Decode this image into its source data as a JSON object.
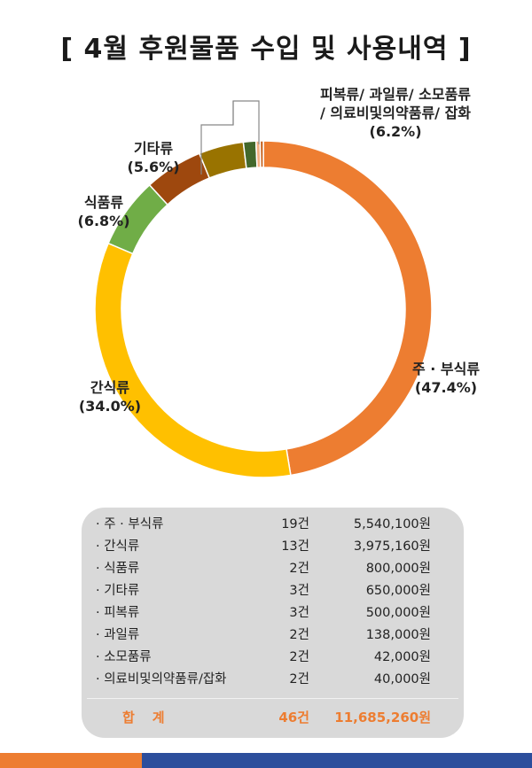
{
  "title": "[ 4월 후원물품 수입 및 사용내역 ]",
  "chart_data": {
    "type": "pie",
    "variant": "donut",
    "title": "[ 4월 후원물품 수입 및 사용내역 ]",
    "slices": [
      {
        "name": "주 · 부식류",
        "percent": 47.4,
        "color": "#ED7D31"
      },
      {
        "name": "간식류",
        "percent": 34.0,
        "color": "#FFC000"
      },
      {
        "name": "식품류",
        "percent": 6.8,
        "color": "#70AD47"
      },
      {
        "name": "기타류",
        "percent": 5.6,
        "color": "#9E480E"
      },
      {
        "name": "피복류",
        "percent": 4.3,
        "color": "#997300"
      },
      {
        "name": "과일류",
        "percent": 1.2,
        "color": "#43682B"
      },
      {
        "name": "소모품류",
        "percent": 0.4,
        "color": "#F4B183"
      },
      {
        "name": "의료비및의약품류/잡화",
        "percent": 0.3,
        "color": "#C55A11"
      }
    ],
    "labels": {
      "main": {
        "name": "주 · 부식류",
        "pct": "(47.4%)"
      },
      "snack": {
        "name": "간식류",
        "pct": "(34.0%)"
      },
      "food": {
        "name": "식품류",
        "pct": "(6.8%)"
      },
      "etc": {
        "name": "기타류",
        "pct": "(5.6%)"
      },
      "group": {
        "line1": "피복류/ 과일류/ 소모품류",
        "line2": "/ 의료비및의약품류/ 잡화",
        "pct": "(6.2%)"
      }
    }
  },
  "summary": {
    "rows": [
      {
        "name": "· 주 · 부식류",
        "count": "19건",
        "amount": "5,540,100원"
      },
      {
        "name": "· 간식류",
        "count": "13건",
        "amount": "3,975,160원"
      },
      {
        "name": "· 식품류",
        "count": "2건",
        "amount": "800,000원"
      },
      {
        "name": "· 기타류",
        "count": "3건",
        "amount": "650,000원"
      },
      {
        "name": "· 피복류",
        "count": "3건",
        "amount": "500,000원"
      },
      {
        "name": "· 과일류",
        "count": "2건",
        "amount": "138,000원"
      },
      {
        "name": "· 소모품류",
        "count": "2건",
        "amount": "42,000원"
      },
      {
        "name": "· 의료비및의약품류/잡화",
        "count": "2건",
        "amount": "40,000원"
      }
    ],
    "total": {
      "label": "합계",
      "count": "46건",
      "amount": "11,685,260원"
    }
  },
  "colors": {
    "accent_orange": "#ED7D31",
    "accent_blue": "#2C4E9C",
    "panel": "#D9D9D9"
  }
}
